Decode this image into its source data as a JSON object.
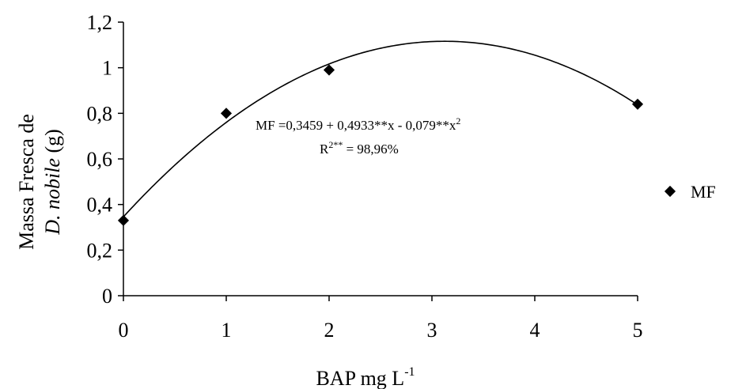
{
  "chart_data": {
    "type": "scatter",
    "x": [
      0,
      1,
      2,
      5
    ],
    "series": [
      {
        "name": "MF",
        "values": [
          0.33,
          0.8,
          0.99,
          0.84
        ]
      }
    ],
    "trendline": {
      "type": "quadratic",
      "coefficients": [
        0.3459,
        0.4933,
        -0.079
      ]
    },
    "xlim": [
      0,
      5
    ],
    "ylim": [
      0,
      1.2
    ],
    "x_ticks": [
      "0",
      "1",
      "2",
      "3",
      "4",
      "5"
    ],
    "y_ticks": [
      "0",
      "0,2",
      "0,4",
      "0,6",
      "0,8",
      "1",
      "1,2"
    ],
    "xlabel": {
      "main": "BAP mg L",
      "sup": "-1"
    },
    "ylabel": {
      "line1": "Massa Fresca de",
      "line2_italic": "D. nobile",
      "line2_rest": " (g)"
    },
    "equation": {
      "line1_text": "MF =0,3459 + 0,4933**x - 0,079**x",
      "line1_sup": "2",
      "line2_text": "R",
      "line2_sup": "2**",
      "line2_rest": " = 98,96%"
    },
    "legend": {
      "position": "right",
      "label": "MF"
    },
    "grid": false,
    "marker_color": "#000000"
  }
}
